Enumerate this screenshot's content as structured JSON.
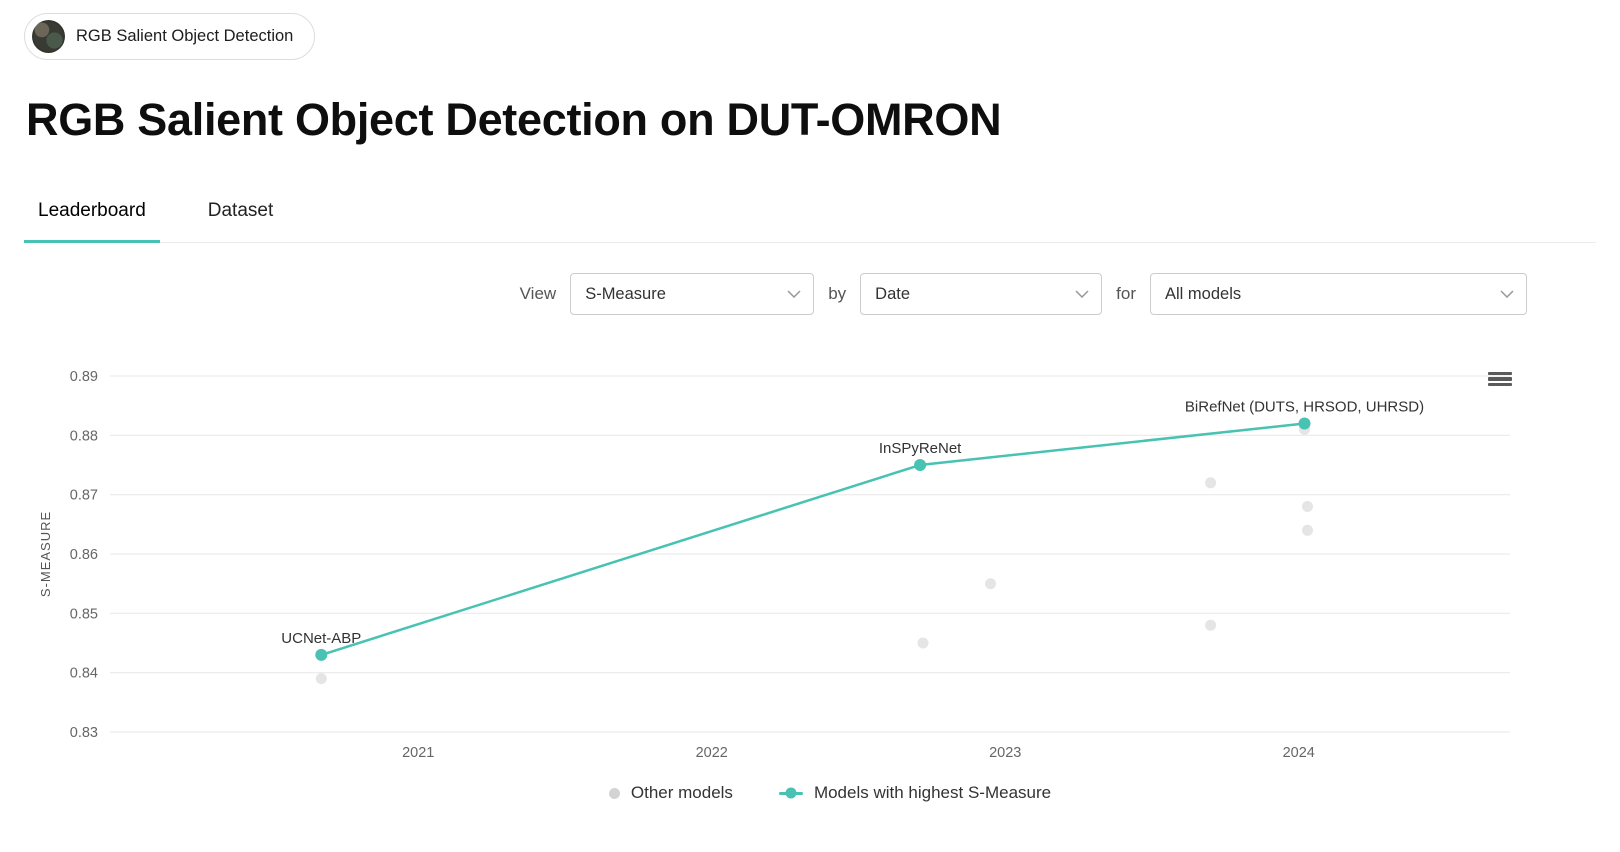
{
  "colors": {
    "accent": "#47c2b3",
    "muted_point": "#d3d3d3",
    "grid": "#e7e7e7"
  },
  "badge": {
    "label": "RGB Salient Object Detection",
    "icon": "task-thumbnail"
  },
  "page": {
    "title": "RGB Salient Object Detection on DUT-OMRON"
  },
  "tabs": [
    {
      "label": "Leaderboard",
      "active": true
    },
    {
      "label": "Dataset",
      "active": false
    }
  ],
  "filters": {
    "view_label": "View",
    "view_value": "S-Measure",
    "by_label": "by",
    "by_value": "Date",
    "for_label": "for",
    "for_value": "All models"
  },
  "chart_data": {
    "type": "scatter",
    "title": "",
    "xlabel": "",
    "ylabel": "S-MEASURE",
    "xlim": [
      2019.95,
      2024.72
    ],
    "ylim": [
      0.83,
      0.89
    ],
    "xticks": [
      2021,
      2022,
      2023,
      2024
    ],
    "yticks": [
      0.83,
      0.84,
      0.85,
      0.86,
      0.87,
      0.88,
      0.89
    ],
    "grid": true,
    "legend_position": "bottom",
    "series": [
      {
        "name": "Other models",
        "type": "scatter",
        "color": "#d3d3d3",
        "points": [
          {
            "x": 2020.67,
            "y": 0.839
          },
          {
            "x": 2022.72,
            "y": 0.845
          },
          {
            "x": 2022.95,
            "y": 0.855
          },
          {
            "x": 2023.7,
            "y": 0.872
          },
          {
            "x": 2023.7,
            "y": 0.848
          },
          {
            "x": 2024.02,
            "y": 0.881
          },
          {
            "x": 2024.03,
            "y": 0.868
          },
          {
            "x": 2024.03,
            "y": 0.864
          }
        ]
      },
      {
        "name": "Models with highest S-Measure",
        "type": "line",
        "color": "#47c2b3",
        "points": [
          {
            "x": 2020.67,
            "y": 0.843,
            "label": "UCNet-ABP"
          },
          {
            "x": 2022.71,
            "y": 0.875,
            "label": "InSPyReNet"
          },
          {
            "x": 2024.02,
            "y": 0.882,
            "label": "BiRefNet (DUTS, HRSOD, UHRSD)"
          }
        ]
      }
    ],
    "legend": [
      {
        "label": "Other models",
        "marker": "dot",
        "color": "#d3d3d3"
      },
      {
        "label": "Models with highest S-Measure",
        "marker": "line-dot",
        "color": "#47c2b3"
      }
    ]
  }
}
